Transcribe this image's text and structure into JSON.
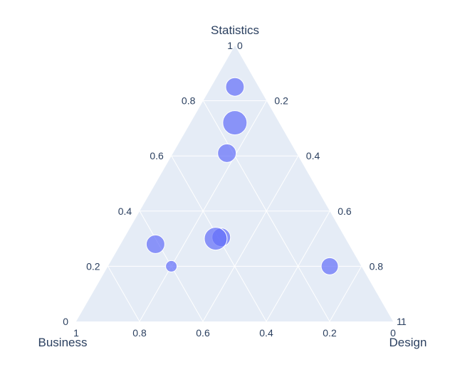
{
  "chart_data": {
    "type": "ternary-scatter",
    "axes": {
      "a": {
        "label": "Statistics",
        "ticks": [
          "0.2",
          "0.4",
          "0.6",
          "0.8",
          "1"
        ],
        "tick_values": [
          0.2,
          0.4,
          0.6,
          0.8,
          1.0
        ]
      },
      "b": {
        "label": "Business",
        "ticks": [
          "0",
          "0.2",
          "0.4",
          "0.6",
          "0.8",
          "1"
        ],
        "tick_values": [
          0,
          0.2,
          0.4,
          0.6,
          0.8,
          1.0
        ]
      },
      "c": {
        "label": "Design",
        "ticks": [
          "0",
          "0.2",
          "0.4",
          "0.6",
          "0.8",
          "1"
        ],
        "tick_values": [
          0,
          0.2,
          0.4,
          0.6,
          0.8,
          1.0
        ]
      }
    },
    "grid": true,
    "marker_color": "#636efa",
    "background_color": "#e5ecf6",
    "points": [
      {
        "a": 0.85,
        "b": 0.075,
        "c": 0.075,
        "size": 13
      },
      {
        "a": 0.72,
        "b": 0.14,
        "c": 0.14,
        "size": 17
      },
      {
        "a": 0.61,
        "b": 0.22,
        "c": 0.17,
        "size": 13
      },
      {
        "a": 0.305,
        "b": 0.39,
        "c": 0.305,
        "size": 13
      },
      {
        "a": 0.3,
        "b": 0.41,
        "c": 0.29,
        "size": 16
      },
      {
        "a": 0.28,
        "b": 0.61,
        "c": 0.11,
        "size": 13
      },
      {
        "a": 0.2,
        "b": 0.6,
        "c": 0.2,
        "size": 8
      },
      {
        "a": 0.2,
        "b": 0.1,
        "c": 0.7,
        "size": 12
      }
    ]
  }
}
